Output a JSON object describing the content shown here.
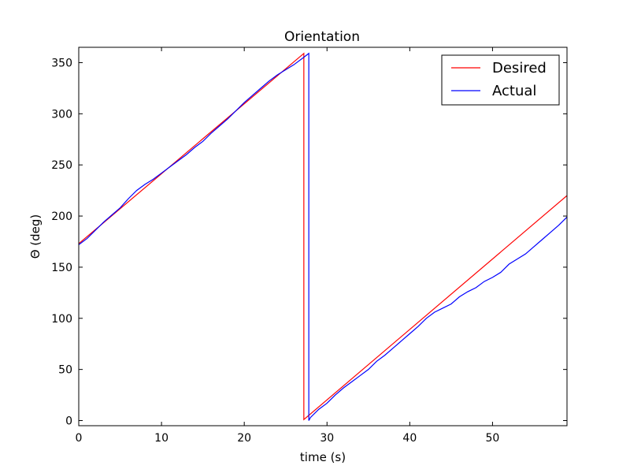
{
  "chart_data": {
    "type": "line",
    "title": "Orientation",
    "xlabel": "time (s)",
    "ylabel": "Θ (deg)",
    "xlim": [
      0,
      59
    ],
    "ylim": [
      -5,
      365
    ],
    "xticks": [
      0,
      10,
      20,
      30,
      40,
      50
    ],
    "yticks": [
      0,
      50,
      100,
      150,
      200,
      250,
      300,
      350
    ],
    "grid": false,
    "legend_position": "top-right",
    "series": [
      {
        "name": "Desired",
        "color": "#ff0000",
        "x": [
          0,
          27.2,
          27.2,
          59
        ],
        "y": [
          173,
          359,
          1,
          220
        ]
      },
      {
        "name": "Actual",
        "color": "#0000ff",
        "x": [
          0,
          1,
          2,
          3,
          4,
          5,
          6,
          7,
          8,
          9,
          10,
          11,
          12,
          13,
          14,
          15,
          16,
          17,
          18,
          19,
          20,
          21,
          22,
          23,
          24,
          25,
          26,
          27,
          27.8,
          27.8,
          28,
          29,
          30,
          31,
          32,
          33,
          34,
          35,
          36,
          37,
          38,
          39,
          40,
          41,
          42,
          43,
          44,
          45,
          46,
          47,
          48,
          49,
          50,
          51,
          52,
          53,
          54,
          55,
          56,
          57,
          58,
          59
        ],
        "y": [
          172,
          178,
          186,
          194,
          201,
          208,
          217,
          225,
          231,
          236,
          242,
          248,
          254,
          260,
          267,
          273,
          281,
          288,
          295,
          303,
          311,
          318,
          325,
          332,
          338,
          343,
          348,
          354,
          359,
          0,
          3,
          11,
          17,
          25,
          32,
          38,
          44,
          50,
          58,
          64,
          71,
          78,
          85,
          92,
          100,
          106,
          110,
          114,
          121,
          126,
          130,
          136,
          140,
          145,
          153,
          158,
          163,
          170,
          177,
          184,
          191,
          199
        ]
      }
    ]
  }
}
